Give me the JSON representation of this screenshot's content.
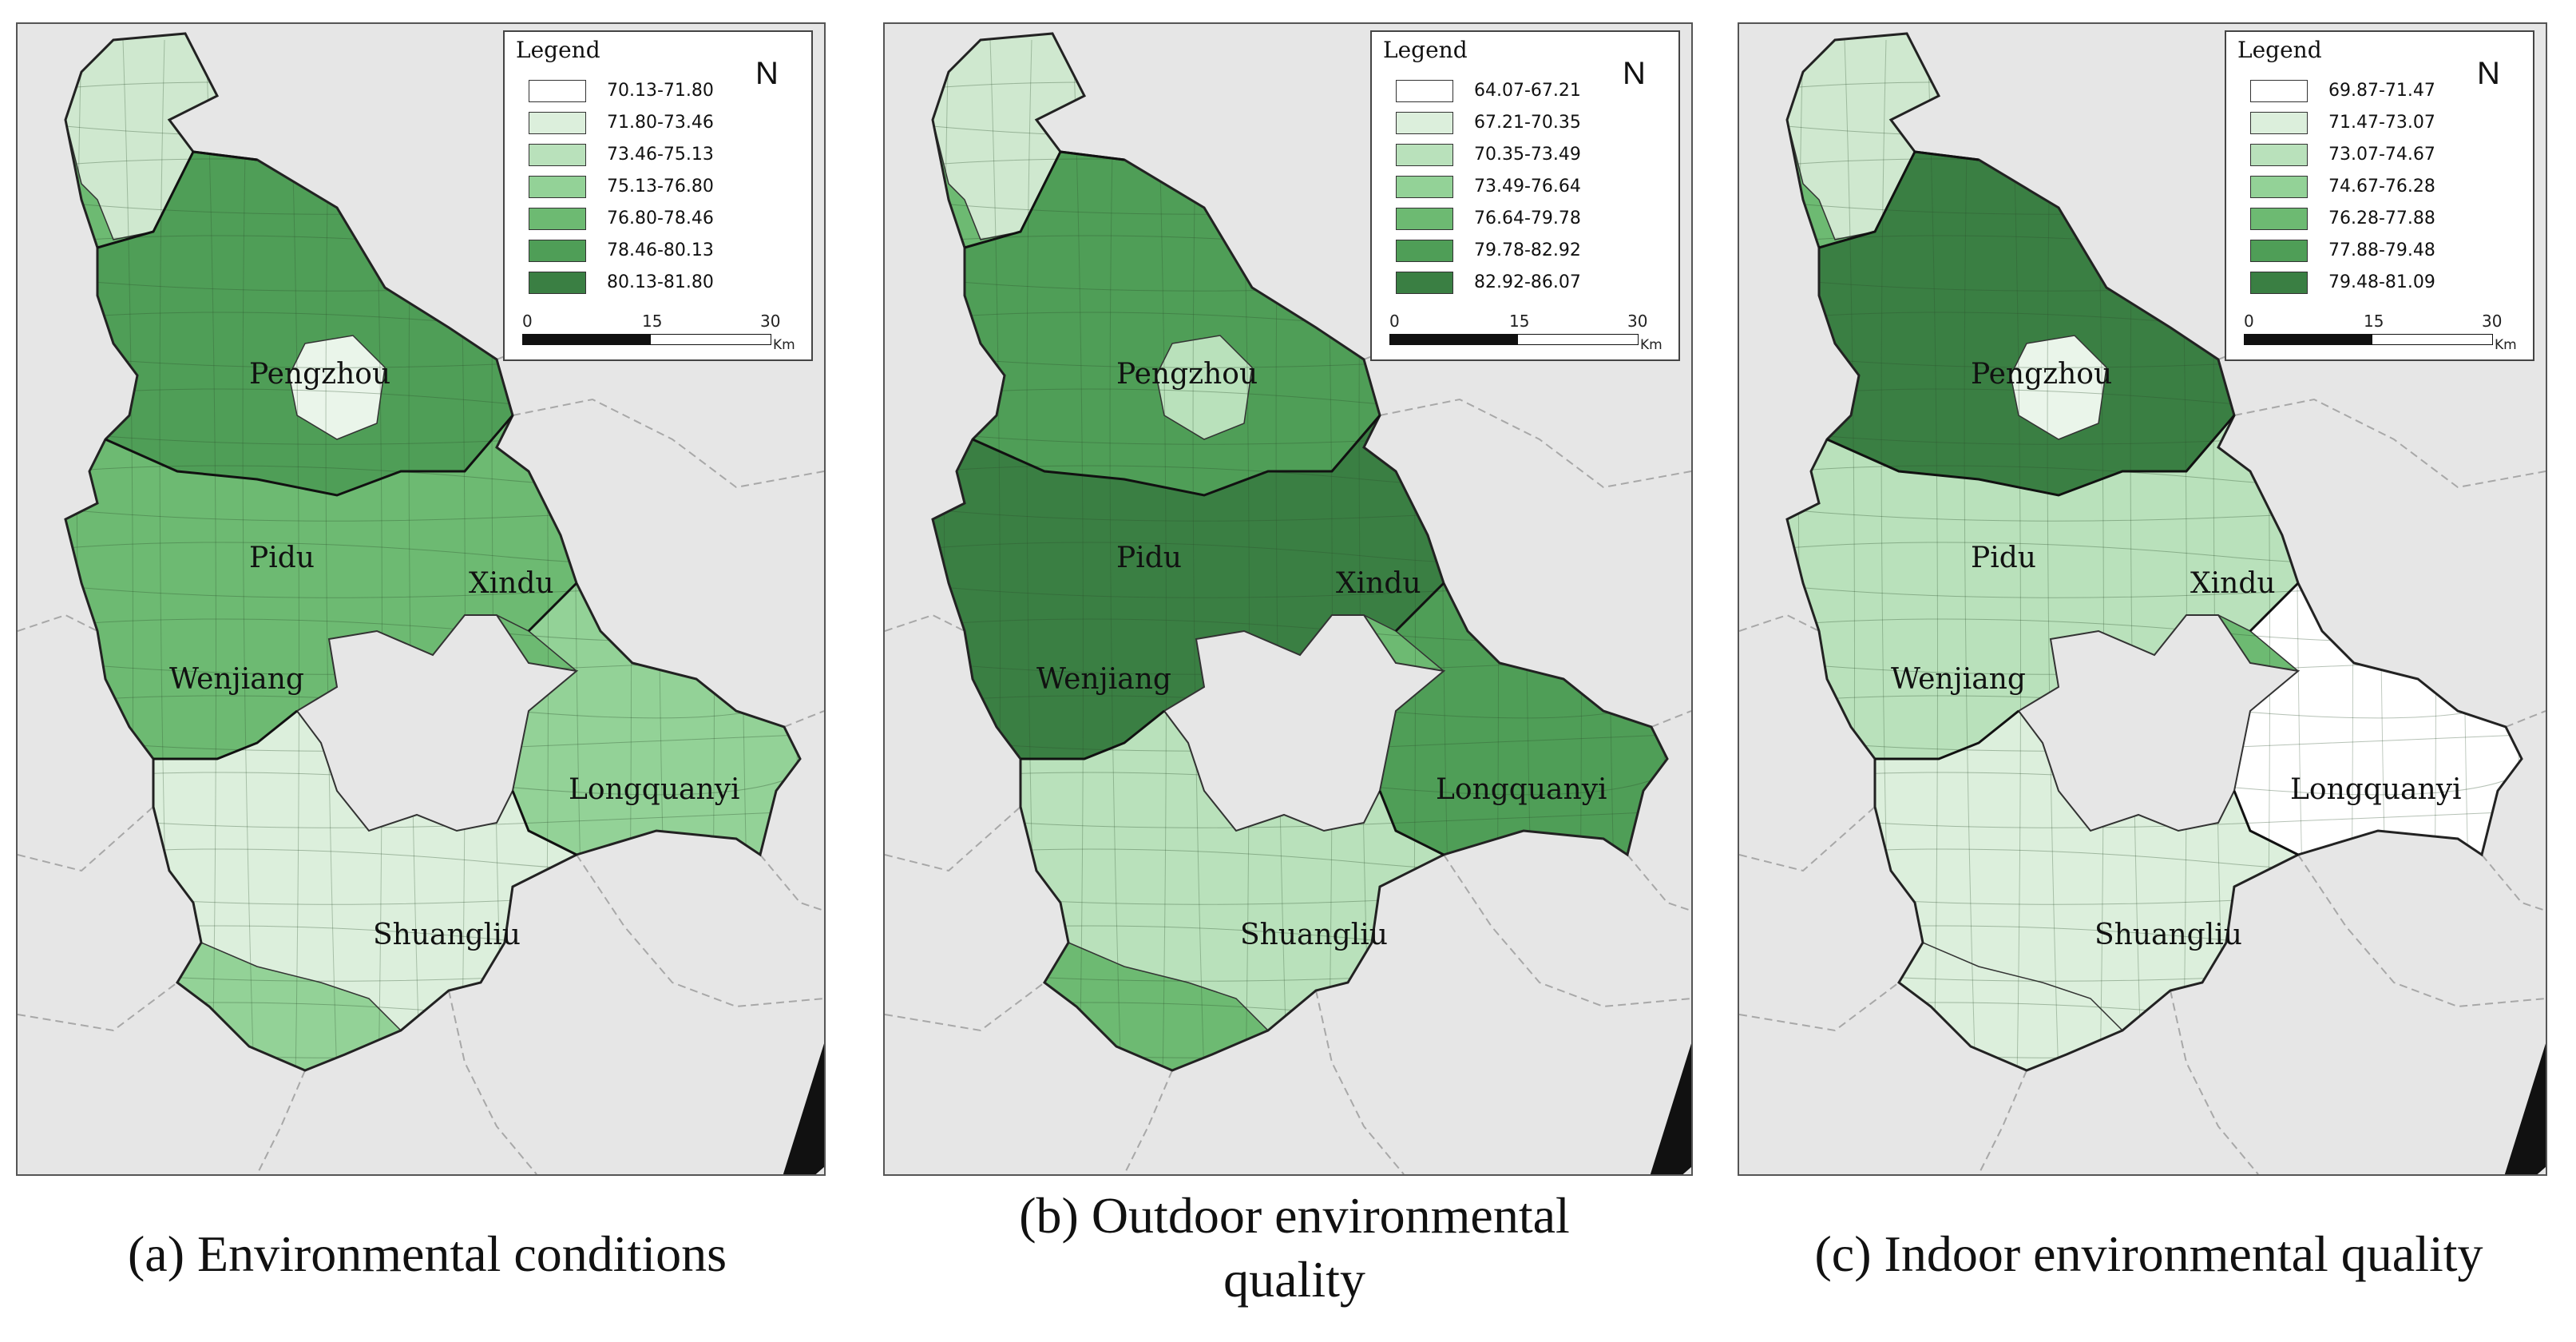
{
  "panels": [
    {
      "caption_lines": [
        "(a) Environmental conditions"
      ],
      "legend": {
        "title": "Legend",
        "classes": [
          "70.13-71.80",
          "71.80-73.46",
          "73.46-75.13",
          "75.13-76.80",
          "76.80-78.46",
          "78.46-80.13",
          "80.13-81.80"
        ],
        "colors": [
          "#ffffff",
          "#dcefdc",
          "#b9e1bb",
          "#93d297",
          "#6dba72",
          "#4f9e57",
          "#3a7f43"
        ]
      },
      "north": "N",
      "scale": {
        "ticks": [
          "0",
          "15",
          "30"
        ],
        "unit": "Km"
      },
      "places": [
        "Pengzhou",
        "Pidu",
        "Xindu",
        "Wenjiang",
        "Longquanyi",
        "Shuangliu"
      ]
    },
    {
      "caption_lines": [
        "(b) Outdoor environmental",
        "quality"
      ],
      "legend": {
        "title": "Legend",
        "classes": [
          "64.07-67.21",
          "67.21-70.35",
          "70.35-73.49",
          "73.49-76.64",
          "76.64-79.78",
          "79.78-82.92",
          "82.92-86.07"
        ],
        "colors": [
          "#ffffff",
          "#dcefdc",
          "#b9e1bb",
          "#93d297",
          "#6dba72",
          "#4f9e57",
          "#3a7f43"
        ]
      },
      "north": "N",
      "scale": {
        "ticks": [
          "0",
          "15",
          "30"
        ],
        "unit": "Km"
      },
      "places": [
        "Pengzhou",
        "Pidu",
        "Xindu",
        "Wenjiang",
        "Longquanyi",
        "Shuangliu"
      ]
    },
    {
      "caption_lines": [
        "(c) Indoor environmental quality"
      ],
      "legend": {
        "title": "Legend",
        "classes": [
          "69.87-71.47",
          "71.47-73.07",
          "73.07-74.67",
          "74.67-76.28",
          "76.28-77.88",
          "77.88-79.48",
          "79.48-81.09"
        ],
        "colors": [
          "#ffffff",
          "#dcefdc",
          "#b9e1bb",
          "#93d297",
          "#6dba72",
          "#4f9e57",
          "#3a7f43"
        ]
      },
      "north": "N",
      "scale": {
        "ticks": [
          "0",
          "15",
          "30"
        ],
        "unit": "Km"
      },
      "places": [
        "Pengzhou",
        "Pidu",
        "Xindu",
        "Wenjiang",
        "Longquanyi",
        "Shuangliu"
      ]
    }
  ],
  "region_shading": {
    "panel_a": {
      "north_tip": "#cfe8cf",
      "pengzhou_center": "#eaf5ea",
      "band": "#4f9e57",
      "west": "#6dba72",
      "longquanyi": "#93d297",
      "shuangliu": "#dcefdc",
      "south": "#93d297"
    },
    "panel_b": {
      "north_tip": "#cfe8cf",
      "pengzhou_center": "#b9e1bb",
      "band": "#4f9e57",
      "west": "#3a7f43",
      "longquanyi": "#4f9e57",
      "shuangliu": "#b9e1bb",
      "south": "#6dba72"
    },
    "panel_c": {
      "north_tip": "#cfe8cf",
      "pengzhou_center": "#eaf5ea",
      "band": "#3a7f43",
      "west": "#b9e1bb",
      "longquanyi": "#ffffff",
      "shuangliu": "#dcefdc",
      "south": "#dcefdc"
    }
  }
}
